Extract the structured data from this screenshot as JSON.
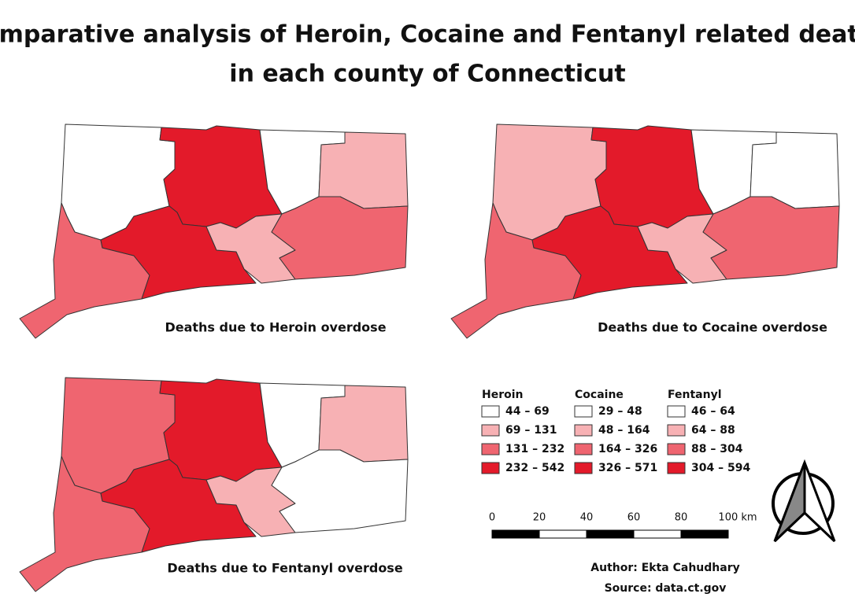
{
  "title": {
    "lines": [
      "Comparative analysis of Heroin, Cocaine and Fentanyl related deaths",
      "in each county of Connecticut"
    ]
  },
  "maps": [
    {
      "caption": "Deaths due to Heroin overdose"
    },
    {
      "caption": "Deaths due to Cocaine overdose"
    },
    {
      "caption": "Deaths due to Fentanyl overdose"
    }
  ],
  "legend": {
    "colors": [
      "#ffffff",
      "#f7b1b4",
      "#ef6570",
      "#e31a2a"
    ],
    "columns": [
      {
        "title": "Heroin",
        "classes": [
          "44 – 69",
          "69 – 131",
          "131 – 232",
          "232 – 542"
        ]
      },
      {
        "title": "Cocaine",
        "classes": [
          "29 – 48",
          "48 – 164",
          "164 – 326",
          "326 – 571"
        ]
      },
      {
        "title": "Fentanyl",
        "classes": [
          "46 – 64",
          "64 – 88",
          "88 – 304",
          "304 – 594"
        ]
      }
    ]
  },
  "scale_bar": {
    "labels": [
      "0",
      "20",
      "40",
      "60",
      "80",
      "100 km"
    ]
  },
  "credits": {
    "author": "Author: Ekta Cahudhary",
    "source": "Source: data.ct.gov"
  }
}
